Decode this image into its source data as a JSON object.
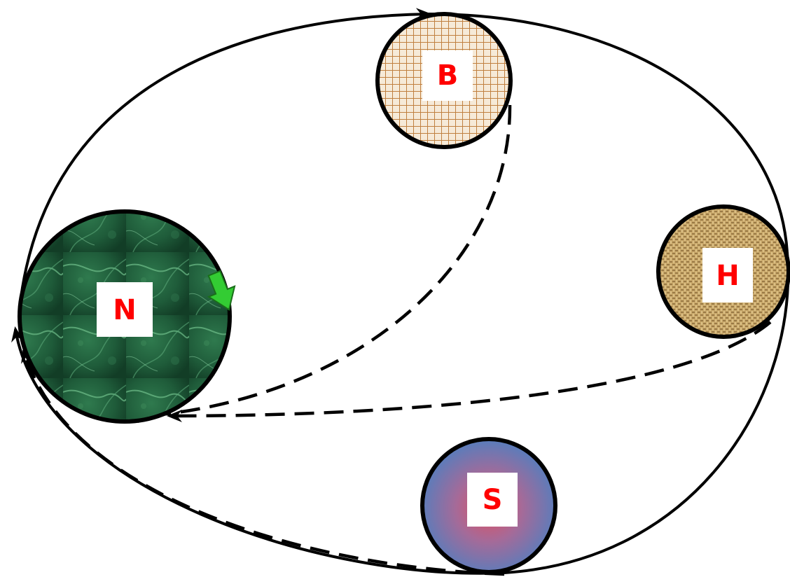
{
  "colors": {
    "stroke": "#000000",
    "label_text": "#ff0000",
    "label_box": "#ffffff",
    "node_n_fill": "#1f5c3a",
    "node_n_vein": "#6fbf8a",
    "node_b_grid": "#c08040",
    "node_b_bg": "#f6ead8",
    "node_h_fill": "#c9a86a",
    "node_h_weave": "#8a6a3a",
    "node_s_center": "#e05060",
    "node_s_edge": "#4f7fc0",
    "green_arrow": "#33cc33",
    "green_arrow_stroke": "#1a6e1a"
  },
  "nodes": [
    {
      "id": "N",
      "label": "N",
      "texture": "green-marble"
    },
    {
      "id": "B",
      "label": "B",
      "texture": "orange-grid"
    },
    {
      "id": "H",
      "label": "H",
      "texture": "burlap"
    },
    {
      "id": "S",
      "label": "S",
      "texture": "blue-radial"
    }
  ],
  "edges": [
    {
      "from": "N",
      "to": "B",
      "style": "solid"
    },
    {
      "from": "B",
      "to": "H",
      "style": "solid"
    },
    {
      "from": "H",
      "to": "S",
      "style": "solid"
    },
    {
      "from": "S",
      "to": "N",
      "style": "solid"
    },
    {
      "from": "B",
      "to": "N",
      "style": "dashed"
    },
    {
      "from": "H",
      "to": "N",
      "style": "dashed"
    },
    {
      "from": "S",
      "to": "N",
      "style": "dashed"
    }
  ],
  "icons": {
    "arrow_marker": "arrowhead-icon",
    "green_arrow": "green-down-arrow-icon"
  }
}
